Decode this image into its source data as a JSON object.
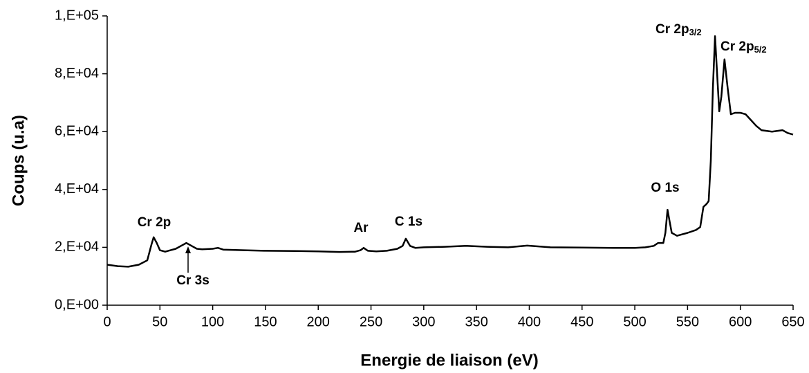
{
  "chart_data": {
    "type": "line",
    "xlabel": "Energie de liaison (eV)",
    "ylabel": "Coups (u.a)",
    "color": "#000000",
    "x": [
      0,
      10,
      20,
      30,
      38,
      42,
      44,
      47,
      50,
      55,
      60,
      65,
      70,
      75,
      80,
      85,
      90,
      100,
      105,
      110,
      130,
      150,
      180,
      200,
      220,
      235,
      240,
      243,
      247,
      255,
      265,
      275,
      280,
      283,
      287,
      292,
      300,
      320,
      340,
      360,
      380,
      398,
      420,
      450,
      480,
      500,
      510,
      518,
      522,
      527,
      529,
      531,
      533,
      535,
      540,
      545,
      550,
      558,
      562,
      565,
      568,
      570,
      572,
      574,
      576,
      578,
      580,
      582,
      585,
      588,
      591,
      595,
      600,
      605,
      610,
      615,
      620,
      630,
      640,
      645,
      650
    ],
    "values": [
      14000,
      13500,
      13300,
      14000,
      15500,
      21000,
      23500,
      21500,
      19000,
      18500,
      19000,
      19500,
      20500,
      21500,
      20500,
      19500,
      19300,
      19500,
      19800,
      19200,
      19000,
      18800,
      18700,
      18600,
      18400,
      18500,
      19000,
      19800,
      18800,
      18600,
      18800,
      19500,
      20500,
      23000,
      20500,
      19800,
      20000,
      20200,
      20500,
      20200,
      20000,
      20600,
      20000,
      19900,
      19800,
      19800,
      20000,
      20500,
      21500,
      21500,
      25000,
      33000,
      29000,
      25000,
      24000,
      24500,
      25000,
      26000,
      27000,
      34000,
      35000,
      36000,
      50000,
      75000,
      93000,
      80000,
      67000,
      72000,
      85000,
      75000,
      66000,
      66500,
      66500,
      66000,
      64000,
      62000,
      60500,
      60000,
      60500,
      59500,
      59000
    ],
    "xlim": [
      0,
      650
    ],
    "xticks": [
      0,
      50,
      100,
      150,
      200,
      250,
      300,
      350,
      400,
      450,
      500,
      550,
      600,
      650
    ],
    "ylim": [
      0,
      100000
    ],
    "yticks": [
      {
        "value": 0,
        "label": "0,E+00"
      },
      {
        "value": 20000,
        "label": "2,E+04"
      },
      {
        "value": 40000,
        "label": "4,E+04"
      },
      {
        "value": 60000,
        "label": "6,E+04"
      },
      {
        "value": 80000,
        "label": "8,E+04"
      },
      {
        "value": 100000,
        "label": "1,E+05"
      }
    ],
    "grid": false,
    "annotations": [
      {
        "text": "Cr 2p"
      },
      {
        "text": "Cr 3s"
      },
      {
        "text": "Ar"
      },
      {
        "text": "C 1s"
      },
      {
        "text": "O 1s"
      },
      {
        "text": "Cr 2p",
        "sub": "3/2"
      },
      {
        "text": "Cr 2p",
        "sub": "5/2"
      }
    ]
  }
}
